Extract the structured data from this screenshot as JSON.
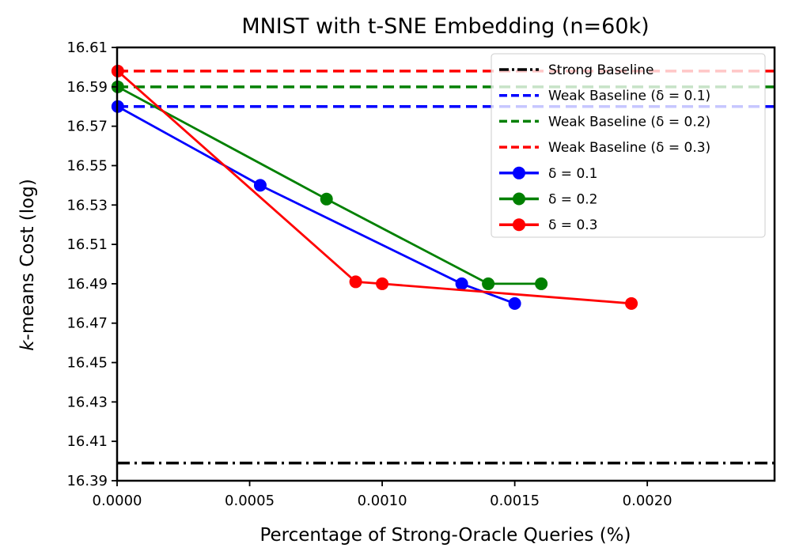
{
  "chart_data": {
    "type": "line",
    "title": "MNIST with t-SNE Embedding (n=60k)",
    "xlabel": "Percentage of Strong-Oracle Queries (%)",
    "ylabel_italic": "k",
    "ylabel_rest": "-means Cost (log)",
    "xlim": [
      0.0,
      0.00248
    ],
    "ylim": [
      16.39,
      16.61
    ],
    "x_ticks": [
      0.0,
      0.0005,
      0.001,
      0.0015,
      0.002
    ],
    "x_tick_labels": [
      "0.0000",
      "0.0005",
      "0.0010",
      "0.0015",
      "0.0020"
    ],
    "y_ticks": [
      16.39,
      16.41,
      16.43,
      16.45,
      16.47,
      16.49,
      16.51,
      16.53,
      16.55,
      16.57,
      16.59,
      16.61
    ],
    "y_tick_labels": [
      "16.39",
      "16.41",
      "16.43",
      "16.45",
      "16.47",
      "16.49",
      "16.51",
      "16.53",
      "16.55",
      "16.57",
      "16.59",
      "16.61"
    ],
    "legend_position": "top-right",
    "baselines": [
      {
        "name": "Strong Baseline",
        "y": 16.399,
        "color": "#000000",
        "style": "dashdot"
      },
      {
        "name": "Weak Baseline (δ = 0.1)",
        "y": 16.58,
        "color": "#0000ff",
        "style": "dashed"
      },
      {
        "name": "Weak Baseline (δ = 0.2)",
        "y": 16.59,
        "color": "#008000",
        "style": "dashed"
      },
      {
        "name": "Weak Baseline (δ = 0.3)",
        "y": 16.598,
        "color": "#ff0000",
        "style": "dashed"
      }
    ],
    "series": [
      {
        "name": "δ = 0.1",
        "color": "#0000ff",
        "x": [
          2.5e-06,
          0.00054,
          0.0013,
          0.0015
        ],
        "y": [
          16.58,
          16.54,
          16.49,
          16.48
        ]
      },
      {
        "name": "δ = 0.2",
        "color": "#008000",
        "x": [
          2.5e-06,
          0.00079,
          0.0014,
          0.0016
        ],
        "y": [
          16.59,
          16.533,
          16.49,
          16.49
        ]
      },
      {
        "name": "δ = 0.3",
        "color": "#ff0000",
        "x": [
          2.5e-06,
          0.0009,
          0.001,
          0.00194
        ],
        "y": [
          16.598,
          16.491,
          16.49,
          16.48
        ]
      }
    ]
  }
}
